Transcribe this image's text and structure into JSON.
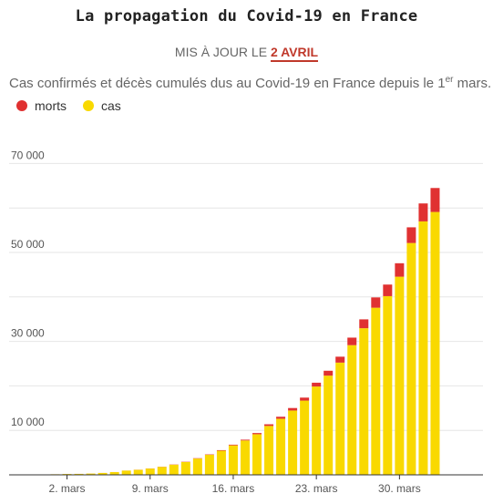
{
  "header": {
    "title": "La propagation du Covid-19 en France",
    "update_prefix": "MIS À JOUR LE",
    "update_date": "2 AVRIL",
    "subtitle_main": "Cas confirmés et décès cumulés dus au Covid-19 en France depuis le 1",
    "subtitle_sup": "er",
    "subtitle_end": " mars."
  },
  "legend": [
    {
      "label": "morts",
      "color": "#e03131"
    },
    {
      "label": "cas",
      "color": "#f9d900"
    }
  ],
  "chart_data": {
    "type": "bar",
    "stacked": true,
    "categories": [
      "1 mars",
      "2 mars",
      "3 mars",
      "4 mars",
      "5 mars",
      "6 mars",
      "7 mars",
      "8 mars",
      "9 mars",
      "10 mars",
      "11 mars",
      "12 mars",
      "13 mars",
      "14 mars",
      "15 mars",
      "16 mars",
      "17 mars",
      "18 mars",
      "19 mars",
      "20 mars",
      "21 mars",
      "22 mars",
      "23 mars",
      "24 mars",
      "25 mars",
      "26 mars",
      "27 mars",
      "28 mars",
      "29 mars",
      "30 mars",
      "31 mars",
      "1 avril",
      "2 avril"
    ],
    "series": [
      {
        "name": "cas",
        "color": "#f9d900",
        "values": [
          130,
          191,
          212,
          285,
          423,
          613,
          949,
          1126,
          1412,
          1784,
          2281,
          2876,
          3661,
          4499,
          5423,
          6633,
          7730,
          9134,
          10995,
          12612,
          14459,
          16689,
          19856,
          22302,
          25233,
          29155,
          32964,
          37575,
          40174,
          44550,
          52128,
          56989,
          59105
        ]
      },
      {
        "name": "morts",
        "color": "#e03131",
        "values": [
          2,
          3,
          4,
          4,
          7,
          9,
          11,
          19,
          25,
          33,
          48,
          61,
          79,
          91,
          127,
          148,
          175,
          264,
          372,
          450,
          562,
          674,
          860,
          1100,
          1331,
          1696,
          1995,
          2314,
          2606,
          3024,
          3523,
          4032,
          5387
        ]
      }
    ],
    "x_tick_labels": [
      "2. mars",
      "9. mars",
      "16. mars",
      "23. mars",
      "30. mars"
    ],
    "y_tick_labels": [
      "10 000",
      "30 000",
      "50 000",
      "70 000"
    ],
    "ylim": [
      0,
      72000
    ],
    "grid": true
  }
}
